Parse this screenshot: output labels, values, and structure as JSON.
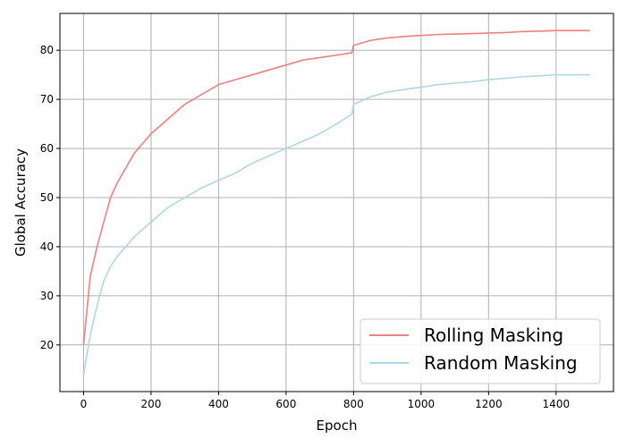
{
  "chart_data": {
    "type": "line",
    "title": "",
    "xlabel": "Epoch",
    "ylabel": "Global Accuracy",
    "xlim": [
      -70,
      1570
    ],
    "ylim": [
      10.5,
      87.5
    ],
    "xticks": [
      0,
      200,
      400,
      600,
      800,
      1000,
      1200,
      1400
    ],
    "yticks": [
      20,
      30,
      40,
      50,
      60,
      70,
      80
    ],
    "grid": true,
    "legend_position": "lower-right",
    "series": [
      {
        "name": "Rolling Masking",
        "color": "#f08080",
        "x": [
          0,
          20,
          40,
          60,
          80,
          100,
          150,
          200,
          250,
          300,
          350,
          400,
          450,
          500,
          550,
          600,
          650,
          700,
          750,
          795,
          800,
          850,
          900,
          950,
          1000,
          1050,
          1100,
          1150,
          1200,
          1250,
          1300,
          1350,
          1400,
          1450,
          1500
        ],
        "values": [
          20,
          34,
          40,
          45,
          50,
          53,
          59,
          63,
          66,
          69,
          71,
          73,
          74,
          75,
          76,
          77,
          78,
          78.5,
          79,
          79.5,
          81,
          82,
          82.5,
          82.8,
          83,
          83.2,
          83.3,
          83.4,
          83.5,
          83.6,
          83.8,
          83.9,
          84,
          84,
          84
        ]
      },
      {
        "name": "Random Masking",
        "color": "#add8e6",
        "x": [
          0,
          20,
          40,
          60,
          80,
          100,
          150,
          200,
          250,
          300,
          350,
          400,
          450,
          500,
          550,
          600,
          650,
          700,
          750,
          795,
          800,
          850,
          900,
          950,
          1000,
          1050,
          1100,
          1150,
          1200,
          1250,
          1300,
          1350,
          1400,
          1450,
          1500
        ],
        "values": [
          14,
          22,
          28,
          33,
          36,
          38,
          42,
          45,
          48,
          50,
          52,
          53.5,
          55,
          57,
          58.5,
          60,
          61.5,
          63,
          65,
          67,
          69,
          70.5,
          71.5,
          72,
          72.5,
          73,
          73.3,
          73.6,
          74,
          74.3,
          74.6,
          74.8,
          75,
          75,
          75
        ]
      }
    ]
  }
}
